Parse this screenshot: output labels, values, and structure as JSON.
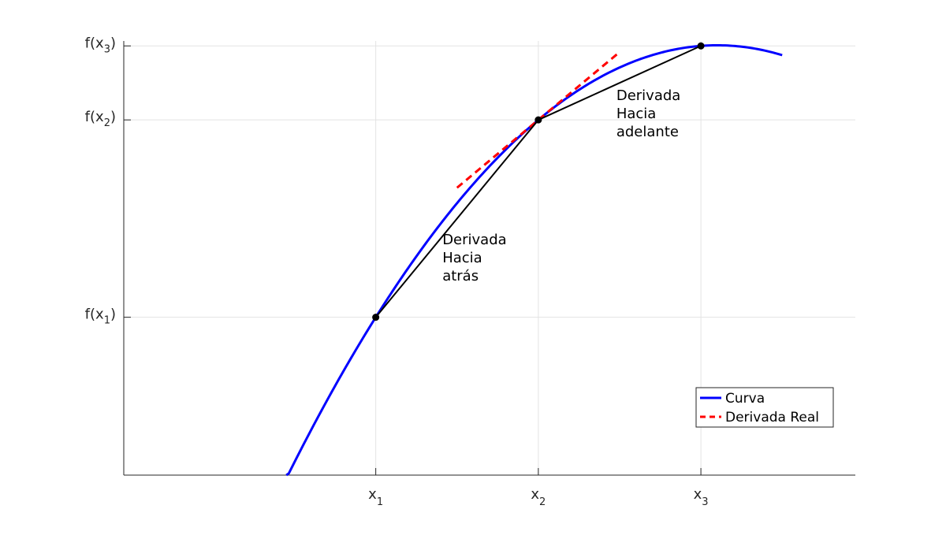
{
  "chart_data": {
    "type": "line",
    "title": "",
    "xlabel": "",
    "ylabel": "",
    "xlim": [
      -0.55,
      3.95
    ],
    "ylim": [
      -0.8,
      1.4
    ],
    "grid": true,
    "legend_placement": "bottom-right",
    "x_ticks": [
      {
        "value": 1,
        "base": "x",
        "sub": "1"
      },
      {
        "value": 2,
        "base": "x",
        "sub": "2"
      },
      {
        "value": 3,
        "base": "x",
        "sub": "3"
      }
    ],
    "y_ticks": [
      {
        "value": 0,
        "base": "f(x",
        "sub": "1",
        "close": ")"
      },
      {
        "value": 1,
        "base": "f(x",
        "sub": "2",
        "close": ")"
      },
      {
        "value": 1.375,
        "base": "f(x",
        "sub": "3",
        "close": ")"
      }
    ],
    "series": [
      {
        "name": "Curva",
        "color": "#0000ff",
        "style": "solid",
        "function": "y = -0.3125*(x-1)^2 + 1.3125*(x-1)",
        "x_range": [
          0.45,
          3.5
        ]
      },
      {
        "name": "Derivada Real",
        "color": "#ff0000",
        "style": "dashed",
        "x": [
          1.5,
          2.5
        ],
        "y": [
          0.65625,
          1.34375
        ]
      }
    ],
    "secants": [
      {
        "label_lines": [
          "Derivada",
          "Hacia",
          "atrás"
        ],
        "x": [
          1,
          2
        ],
        "y": [
          0,
          1
        ],
        "color": "#000000"
      },
      {
        "label_lines": [
          "Derivada",
          "Hacia",
          "adelante"
        ],
        "x": [
          2,
          3
        ],
        "y": [
          1,
          1.375
        ],
        "color": "#000000"
      }
    ],
    "points": [
      {
        "x": 1,
        "y": 0
      },
      {
        "x": 2,
        "y": 1
      },
      {
        "x": 3,
        "y": 1.375
      }
    ],
    "annotations": [
      {
        "lines": [
          "Derivada",
          "Hacia",
          "atrás"
        ],
        "x": 1.41,
        "y": 0.37
      },
      {
        "lines": [
          "Derivada",
          "Hacia",
          "adelante"
        ],
        "x": 2.48,
        "y": 1.1
      }
    ]
  }
}
